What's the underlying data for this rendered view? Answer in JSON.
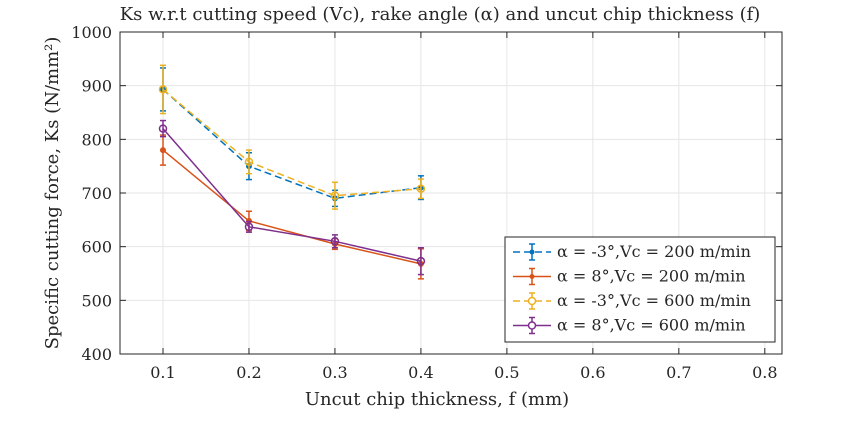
{
  "chart_data": {
    "type": "line",
    "title": "Ks w.r.t cutting speed (Vc), rake angle (α) and uncut chip thickness (f)",
    "xlabel": "Uncut chip thickness, f (mm)",
    "ylabel": "Specific cutting force, Ks (N/mm²)",
    "xlim": [
      0.05,
      0.82
    ],
    "ylim": [
      400,
      1000
    ],
    "xticks": [
      0.1,
      0.2,
      0.3,
      0.4,
      0.5,
      0.6,
      0.7,
      0.8
    ],
    "xtick_labels": [
      "0.1",
      "0.2",
      "0.3",
      "0.4",
      "0.5",
      "0.6",
      "0.7",
      "0.8"
    ],
    "yticks": [
      400,
      500,
      600,
      700,
      800,
      900,
      1000
    ],
    "ytick_labels": [
      "400",
      "500",
      "600",
      "700",
      "800",
      "900",
      "1000"
    ],
    "grid": true,
    "legend_position": "bottom-right",
    "x": [
      0.1,
      0.2,
      0.3,
      0.4
    ],
    "series": [
      {
        "name": "α = -3°,Vc = 200 m/min",
        "color": "#0072BD",
        "dash": "dashed",
        "marker": "dot",
        "values": [
          893,
          750,
          690,
          710
        ],
        "errors": [
          40,
          25,
          15,
          22
        ]
      },
      {
        "name": "α = 8°,Vc = 200 m/min",
        "color": "#D95319",
        "dash": "solid",
        "marker": "dot",
        "values": [
          780,
          648,
          605,
          568
        ],
        "errors": [
          28,
          18,
          10,
          28
        ]
      },
      {
        "name": "α = -3°,Vc = 600 m/min",
        "color": "#EDB120",
        "dash": "dashed",
        "marker": "circle",
        "values": [
          893,
          758,
          695,
          708
        ],
        "errors": [
          45,
          22,
          25,
          18
        ]
      },
      {
        "name": "α = 8°,Vc = 600 m/min",
        "color": "#7E2F8E",
        "dash": "solid",
        "marker": "circle",
        "values": [
          820,
          637,
          610,
          573
        ],
        "errors": [
          15,
          10,
          12,
          25
        ]
      }
    ]
  }
}
